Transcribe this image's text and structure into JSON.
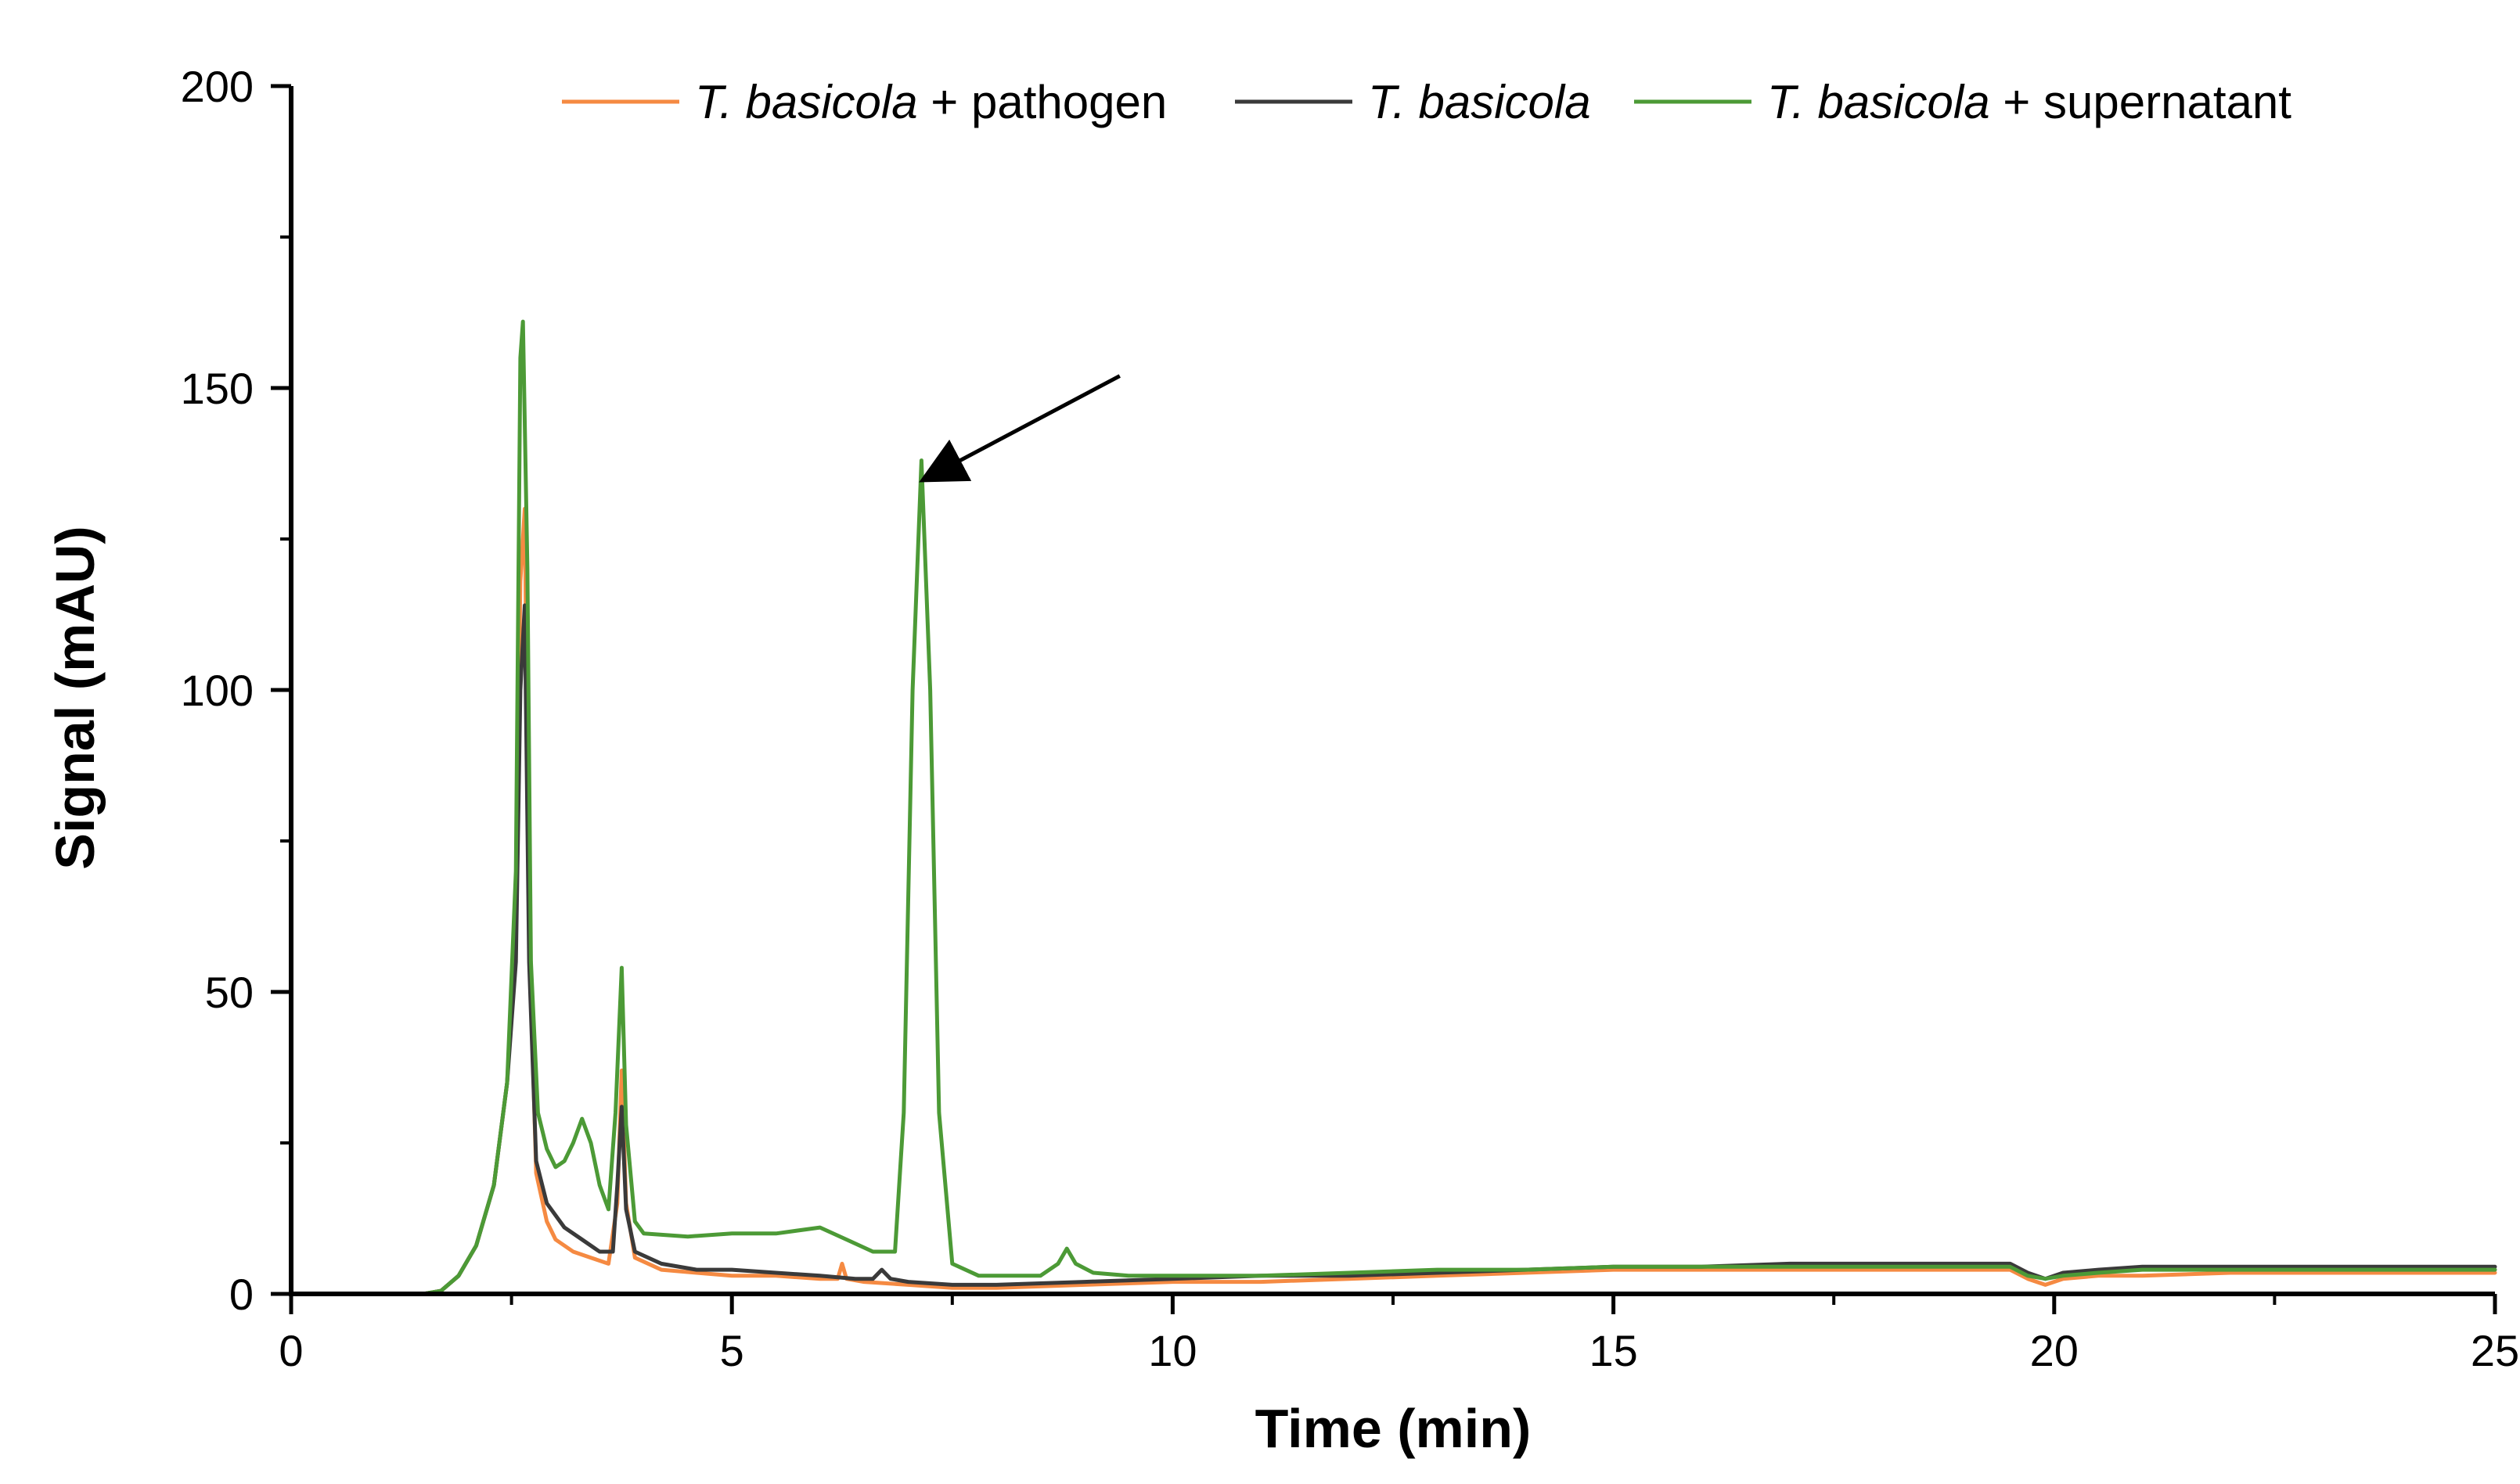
{
  "chart_data": {
    "type": "line",
    "xlabel": "Time (min)",
    "ylabel": "Signal (mAU)",
    "xlim": [
      0,
      25
    ],
    "ylim": [
      0,
      200
    ],
    "xticks": [
      0,
      5,
      10,
      15,
      20,
      25
    ],
    "yticks": [
      0,
      50,
      100,
      150,
      200
    ],
    "xtick_labels": [
      "0",
      "5",
      "10",
      "15",
      "20",
      "25"
    ],
    "ytick_labels": [
      "0",
      "50",
      "100",
      "150",
      "200"
    ],
    "grid": false,
    "legend_position": "top",
    "series": [
      {
        "name_italic": "T. basicola",
        "name_rest": " + pathogen",
        "color": "#f58a42",
        "points": [
          [
            0,
            0
          ],
          [
            1.5,
            0
          ],
          [
            1.7,
            0.5
          ],
          [
            1.9,
            3
          ],
          [
            2.1,
            8
          ],
          [
            2.3,
            18
          ],
          [
            2.45,
            35
          ],
          [
            2.55,
            60
          ],
          [
            2.6,
            118
          ],
          [
            2.65,
            130
          ],
          [
            2.7,
            60
          ],
          [
            2.78,
            20
          ],
          [
            2.9,
            12
          ],
          [
            3.0,
            9
          ],
          [
            3.2,
            7
          ],
          [
            3.4,
            6
          ],
          [
            3.6,
            5
          ],
          [
            3.7,
            15
          ],
          [
            3.75,
            37
          ],
          [
            3.8,
            15
          ],
          [
            3.9,
            6
          ],
          [
            4.2,
            4
          ],
          [
            4.6,
            3.5
          ],
          [
            5.0,
            3
          ],
          [
            5.5,
            3
          ],
          [
            6.0,
            2.5
          ],
          [
            6.2,
            2.5
          ],
          [
            6.25,
            5
          ],
          [
            6.3,
            2.5
          ],
          [
            6.5,
            2
          ],
          [
            7.0,
            1.5
          ],
          [
            7.5,
            1
          ],
          [
            8,
            1
          ],
          [
            9,
            1.5
          ],
          [
            10,
            2
          ],
          [
            11,
            2
          ],
          [
            12,
            2.5
          ],
          [
            13,
            3
          ],
          [
            14,
            3.5
          ],
          [
            15,
            4
          ],
          [
            16,
            4
          ],
          [
            17,
            4
          ],
          [
            18,
            4
          ],
          [
            19,
            4
          ],
          [
            19.5,
            4
          ],
          [
            19.7,
            2.5
          ],
          [
            19.9,
            1.5
          ],
          [
            20.1,
            2.5
          ],
          [
            20.5,
            3
          ],
          [
            21,
            3
          ],
          [
            22,
            3.5
          ],
          [
            23,
            3.5
          ],
          [
            24,
            3.5
          ],
          [
            25,
            3.5
          ]
        ]
      },
      {
        "name_italic": "T. basicola",
        "name_rest": "",
        "color": "#3a3a3a",
        "points": [
          [
            0,
            0
          ],
          [
            1.5,
            0
          ],
          [
            1.7,
            0.5
          ],
          [
            1.9,
            3
          ],
          [
            2.1,
            8
          ],
          [
            2.3,
            18
          ],
          [
            2.45,
            35
          ],
          [
            2.55,
            55
          ],
          [
            2.6,
            100
          ],
          [
            2.65,
            114
          ],
          [
            2.7,
            55
          ],
          [
            2.78,
            22
          ],
          [
            2.9,
            15
          ],
          [
            3.1,
            11
          ],
          [
            3.3,
            9
          ],
          [
            3.5,
            7
          ],
          [
            3.65,
            7
          ],
          [
            3.7,
            18
          ],
          [
            3.75,
            31
          ],
          [
            3.8,
            14
          ],
          [
            3.9,
            7
          ],
          [
            4.2,
            5
          ],
          [
            4.6,
            4
          ],
          [
            5.0,
            4
          ],
          [
            5.5,
            3.5
          ],
          [
            6.0,
            3
          ],
          [
            6.4,
            2.5
          ],
          [
            6.6,
            2.5
          ],
          [
            6.7,
            4
          ],
          [
            6.8,
            2.5
          ],
          [
            7.0,
            2
          ],
          [
            7.5,
            1.5
          ],
          [
            8,
            1.5
          ],
          [
            9,
            2
          ],
          [
            10,
            2.5
          ],
          [
            11,
            3
          ],
          [
            12,
            3
          ],
          [
            13,
            3.5
          ],
          [
            14,
            4
          ],
          [
            15,
            4.5
          ],
          [
            16,
            4.5
          ],
          [
            17,
            5
          ],
          [
            18,
            5
          ],
          [
            19,
            5
          ],
          [
            19.5,
            5
          ],
          [
            19.7,
            3.5
          ],
          [
            19.9,
            2.5
          ],
          [
            20.1,
            3.5
          ],
          [
            20.5,
            4
          ],
          [
            21,
            4.5
          ],
          [
            22,
            4.5
          ],
          [
            23,
            4.5
          ],
          [
            24,
            4.5
          ],
          [
            25,
            4.5
          ]
        ]
      },
      {
        "name_italic": "T. basicola",
        "name_rest": " + supernatant",
        "color": "#4c9a36",
        "points": [
          [
            0,
            0
          ],
          [
            1.5,
            0
          ],
          [
            1.7,
            0.5
          ],
          [
            1.9,
            3
          ],
          [
            2.1,
            8
          ],
          [
            2.3,
            18
          ],
          [
            2.45,
            35
          ],
          [
            2.55,
            70
          ],
          [
            2.6,
            155
          ],
          [
            2.63,
            161
          ],
          [
            2.68,
            120
          ],
          [
            2.72,
            55
          ],
          [
            2.8,
            30
          ],
          [
            2.9,
            24
          ],
          [
            3.0,
            21
          ],
          [
            3.1,
            22
          ],
          [
            3.2,
            25
          ],
          [
            3.3,
            29
          ],
          [
            3.4,
            25
          ],
          [
            3.5,
            18
          ],
          [
            3.6,
            14
          ],
          [
            3.68,
            30
          ],
          [
            3.75,
            54
          ],
          [
            3.8,
            28
          ],
          [
            3.9,
            12
          ],
          [
            4.0,
            10
          ],
          [
            4.5,
            9.5
          ],
          [
            5.0,
            10
          ],
          [
            5.5,
            10
          ],
          [
            6.0,
            11
          ],
          [
            6.3,
            9
          ],
          [
            6.6,
            7
          ],
          [
            6.85,
            7
          ],
          [
            6.95,
            30
          ],
          [
            7.05,
            100
          ],
          [
            7.15,
            138
          ],
          [
            7.25,
            100
          ],
          [
            7.35,
            30
          ],
          [
            7.5,
            5
          ],
          [
            7.8,
            3
          ],
          [
            8.2,
            3
          ],
          [
            8.5,
            3
          ],
          [
            8.7,
            5
          ],
          [
            8.8,
            7.5
          ],
          [
            8.9,
            5
          ],
          [
            9.1,
            3.5
          ],
          [
            9.5,
            3
          ],
          [
            10,
            3
          ],
          [
            11,
            3
          ],
          [
            12,
            3.5
          ],
          [
            13,
            4
          ],
          [
            14,
            4
          ],
          [
            15,
            4.5
          ],
          [
            16,
            4.5
          ],
          [
            17,
            4.5
          ],
          [
            18,
            4.5
          ],
          [
            19,
            4.5
          ],
          [
            19.5,
            4.5
          ],
          [
            19.7,
            3
          ],
          [
            19.9,
            2.5
          ],
          [
            20.1,
            3
          ],
          [
            20.5,
            3.5
          ],
          [
            21,
            4
          ],
          [
            22,
            4
          ],
          [
            23,
            4
          ],
          [
            24,
            4
          ],
          [
            25,
            4
          ]
        ]
      }
    ],
    "annotation": {
      "type": "arrow",
      "target": [
        7.2,
        135
      ],
      "tail": [
        9.4,
        152
      ]
    }
  }
}
